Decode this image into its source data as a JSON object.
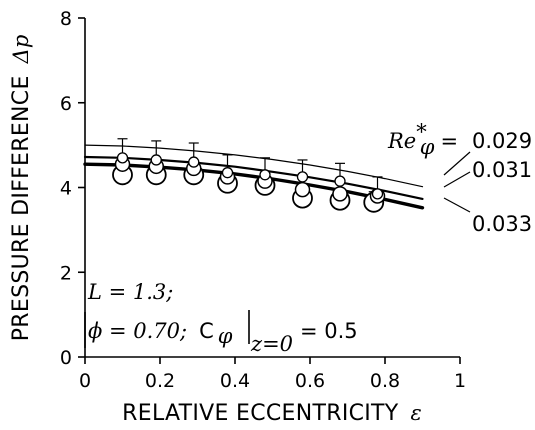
{
  "chart_data": {
    "type": "scatter",
    "xlabel": "RELATIVE ECCENTRICITY",
    "xlabel_symbol": "ε",
    "ylabel": "PRESSURE DIFFERENCE",
    "ylabel_symbol": "Δp",
    "xlim": [
      0,
      1
    ],
    "ylim": [
      0,
      8
    ],
    "xticks": [
      "0",
      "0.2",
      "0.4",
      "0.6",
      "0.8",
      "1"
    ],
    "yticks": [
      "0",
      "2",
      "4",
      "6",
      "8"
    ],
    "grid": false,
    "series": [
      {
        "name": "Re*φ = 0.029",
        "label": "0.029",
        "marker": "small-circle",
        "x": [
          0.1,
          0.19,
          0.29,
          0.38,
          0.48,
          0.58,
          0.68,
          0.78
        ],
        "y": [
          4.7,
          4.65,
          4.6,
          4.35,
          4.3,
          4.25,
          4.15,
          3.85
        ],
        "err": [
          0.45,
          0.45,
          0.45,
          0.42,
          0.4,
          0.4,
          0.42,
          0.4
        ],
        "fit_x": [
          0.0,
          0.1,
          0.2,
          0.3,
          0.4,
          0.5,
          0.6,
          0.7,
          0.8,
          0.9
        ],
        "fit_y": [
          5.0,
          4.98,
          4.93,
          4.86,
          4.77,
          4.66,
          4.53,
          4.38,
          4.21,
          4.02
        ]
      },
      {
        "name": "Re*φ = 0.031",
        "label": "0.031",
        "marker": "medium-circle",
        "x": [
          0.1,
          0.19,
          0.29,
          0.38,
          0.48,
          0.58,
          0.68,
          0.78
        ],
        "y": [
          4.55,
          4.5,
          4.45,
          4.25,
          4.15,
          3.95,
          3.85,
          3.8
        ],
        "err": [
          0.0,
          0.0,
          0.0,
          0.0,
          0.0,
          0.0,
          0.0,
          0.0
        ],
        "fit_x": [
          0.0,
          0.1,
          0.2,
          0.3,
          0.4,
          0.5,
          0.6,
          0.7,
          0.8,
          0.9
        ],
        "fit_y": [
          4.72,
          4.7,
          4.65,
          4.58,
          4.49,
          4.37,
          4.24,
          4.09,
          3.92,
          3.73
        ]
      },
      {
        "name": "Re*φ = 0.033",
        "label": "0.033",
        "marker": "large-circle",
        "x": [
          0.1,
          0.19,
          0.29,
          0.38,
          0.48,
          0.58,
          0.68,
          0.77
        ],
        "y": [
          4.3,
          4.3,
          4.3,
          4.1,
          4.05,
          3.75,
          3.7,
          3.65
        ],
        "err": [
          0.0,
          0.0,
          0.0,
          0.0,
          0.0,
          0.0,
          0.0,
          0.25
        ],
        "fit_x": [
          0.0,
          0.1,
          0.2,
          0.3,
          0.4,
          0.5,
          0.6,
          0.7,
          0.8,
          0.9
        ],
        "fit_y": [
          4.55,
          4.53,
          4.48,
          4.41,
          4.32,
          4.2,
          4.06,
          3.9,
          3.72,
          3.52
        ]
      }
    ],
    "legend_prefix": "Re*φ =",
    "annotations": {
      "line1": "L = 1.3;",
      "line2_phi": "ϕ = 0.70;",
      "line2_c": "C",
      "line2_sub": "z=0",
      "line2_val": "= 0.5"
    }
  }
}
